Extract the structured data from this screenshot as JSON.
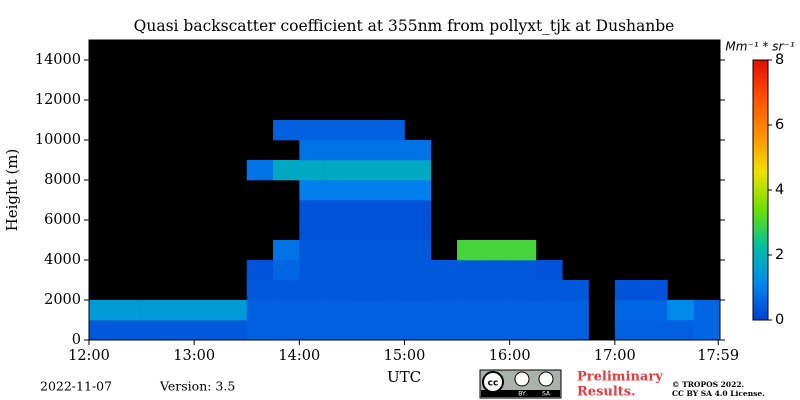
{
  "chart_data": {
    "type": "heatmap",
    "title": "Quasi backscatter coefficient at 355nm from pollyxt_tjk at Dushanbe",
    "xlabel": "UTC",
    "ylabel": "Height (m)",
    "colorbar_label": "Mm⁻¹ * sr⁻¹",
    "xbins": [
      12,
      12.25,
      12.5,
      12.75,
      13,
      13.25,
      13.5,
      13.75,
      14,
      14.25,
      14.5,
      14.75,
      15,
      15.25,
      15.5,
      15.75,
      16,
      16.25,
      16.5,
      16.75,
      17,
      17.25,
      17.5,
      17.75,
      18
    ],
    "ybins": [
      0,
      1000,
      2000,
      3000,
      4000,
      5000,
      6000,
      7000,
      8000,
      9000,
      10000,
      11000,
      12000,
      13000,
      14000,
      15000
    ],
    "z": [
      [
        0.4,
        0.4,
        0.4,
        0.4,
        0.4,
        0.4,
        0.5,
        0.5,
        0.5,
        0.5,
        0.5,
        0.5,
        0.5,
        0.5,
        0.5,
        0.5,
        0.5,
        0.5,
        0.5,
        null,
        0.5,
        0.5,
        0.5,
        0.6
      ],
      [
        1.5,
        1.5,
        1.5,
        1.5,
        1.5,
        1.5,
        0.5,
        0.5,
        0.5,
        0.5,
        0.5,
        0.5,
        0.5,
        0.5,
        0.5,
        0.5,
        0.5,
        0.5,
        0.5,
        null,
        0.6,
        0.6,
        1.2,
        0.6
      ],
      [
        null,
        null,
        null,
        null,
        null,
        null,
        0.4,
        0.4,
        0.4,
        0.4,
        0.4,
        0.4,
        0.4,
        0.4,
        0.4,
        0.4,
        0.4,
        0.4,
        0.4,
        null,
        0.3,
        0.3,
        null,
        null
      ],
      [
        null,
        null,
        null,
        null,
        null,
        null,
        0.3,
        0.6,
        0.4,
        0.4,
        0.4,
        0.4,
        0.4,
        0.4,
        0.4,
        0.4,
        0.4,
        0.3,
        null,
        null,
        null,
        null,
        null,
        null
      ],
      [
        null,
        null,
        null,
        null,
        null,
        null,
        null,
        0.8,
        0.4,
        0.4,
        0.4,
        0.4,
        0.4,
        null,
        3,
        3,
        3,
        null,
        null,
        null,
        null,
        null,
        null,
        null
      ],
      [
        null,
        null,
        null,
        null,
        null,
        null,
        null,
        null,
        0.3,
        0.3,
        0.3,
        0.3,
        0.3,
        null,
        null,
        null,
        null,
        null,
        null,
        null,
        null,
        null,
        null,
        null
      ],
      [
        null,
        null,
        null,
        null,
        null,
        null,
        null,
        null,
        0.3,
        0.3,
        0.3,
        0.3,
        0.3,
        null,
        null,
        null,
        null,
        null,
        null,
        null,
        null,
        null,
        null,
        null
      ],
      [
        null,
        null,
        null,
        null,
        null,
        null,
        null,
        null,
        1,
        1,
        1,
        1,
        1,
        null,
        null,
        null,
        null,
        null,
        null,
        null,
        null,
        null,
        null,
        null
      ],
      [
        null,
        null,
        null,
        null,
        null,
        null,
        0.8,
        1.8,
        1.8,
        1.8,
        1.8,
        1.8,
        1.8,
        null,
        null,
        null,
        null,
        null,
        null,
        null,
        null,
        null,
        null,
        null
      ],
      [
        null,
        null,
        null,
        null,
        null,
        null,
        null,
        null,
        0.8,
        0.8,
        0.8,
        0.8,
        0.8,
        null,
        null,
        null,
        null,
        null,
        null,
        null,
        null,
        null,
        null,
        null
      ],
      [
        null,
        null,
        null,
        null,
        null,
        null,
        null,
        0.5,
        0.5,
        0.5,
        0.5,
        0.5,
        null,
        null,
        null,
        null,
        null,
        null,
        null,
        null,
        null,
        null,
        null,
        null
      ],
      [
        null,
        null,
        null,
        null,
        null,
        null,
        null,
        null,
        null,
        null,
        null,
        null,
        null,
        null,
        null,
        null,
        null,
        null,
        null,
        null,
        null,
        null,
        null,
        null
      ],
      [
        null,
        null,
        null,
        null,
        null,
        null,
        null,
        null,
        null,
        null,
        null,
        null,
        null,
        null,
        null,
        null,
        null,
        null,
        null,
        null,
        null,
        null,
        null,
        null
      ],
      [
        null,
        null,
        null,
        null,
        null,
        null,
        null,
        null,
        null,
        null,
        null,
        null,
        null,
        null,
        null,
        null,
        null,
        null,
        null,
        null,
        null,
        null,
        null,
        null
      ],
      [
        null,
        null,
        null,
        null,
        null,
        null,
        null,
        null,
        null,
        null,
        null,
        null,
        null,
        null,
        null,
        null,
        null,
        null,
        null,
        null,
        null,
        null,
        null,
        null
      ]
    ],
    "xlim": [
      12,
      18
    ],
    "ylim": [
      0,
      15000
    ],
    "xticks": [
      {
        "value": 12,
        "label": "12:00"
      },
      {
        "value": 13,
        "label": "13:00"
      },
      {
        "value": 14,
        "label": "14:00"
      },
      {
        "value": 15,
        "label": "15:00"
      },
      {
        "value": 16,
        "label": "16:00"
      },
      {
        "value": 17,
        "label": "17:00"
      },
      {
        "value": 17.983,
        "label": "17:59"
      }
    ],
    "yticks": [
      0,
      2000,
      4000,
      6000,
      8000,
      10000,
      12000,
      14000
    ],
    "zlim": [
      0,
      8
    ],
    "zticks": [
      0,
      2,
      4,
      6,
      8
    ],
    "colorscale": [
      "#0040d0",
      "#0088f0",
      "#00c0a0",
      "#70e000",
      "#f0e000",
      "#ff9000",
      "#ff5000",
      "#e01000"
    ],
    "background": "#000000"
  },
  "footer": {
    "date": "2022-11-07",
    "version": "Version: 3.5",
    "badge": [
      "cc",
      "BY",
      "SA"
    ],
    "preliminary": [
      "Preliminary",
      "Results."
    ],
    "copyright": [
      "© TROPOS 2022.",
      "CC BY SA 4.0 License."
    ]
  }
}
